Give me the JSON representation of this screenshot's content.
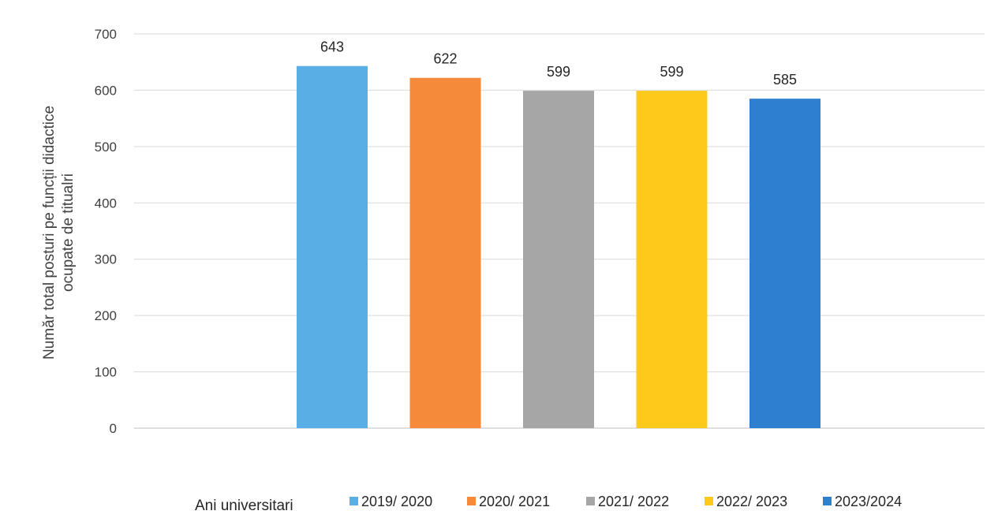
{
  "chart_data": {
    "type": "bar",
    "categories": [
      "2019/ 2020",
      "2020/ 2021",
      "2021/ 2022",
      "2022/ 2023",
      "2023/2024"
    ],
    "values": [
      643,
      622,
      599,
      599,
      585
    ],
    "colors": [
      "#5aaee6",
      "#f58a3a",
      "#a6a6a6",
      "#fdc91a",
      "#2f7fd1"
    ],
    "ylabel_line1": "Număr total  posturi pe funcții didactice",
    "ylabel_line2": "ocupate de titualri",
    "xlabel": "Ani universitari",
    "ylim": [
      0,
      700
    ],
    "yticks": [
      0,
      100,
      200,
      300,
      400,
      500,
      600,
      700
    ],
    "grid": true,
    "legend_position": "bottom"
  }
}
